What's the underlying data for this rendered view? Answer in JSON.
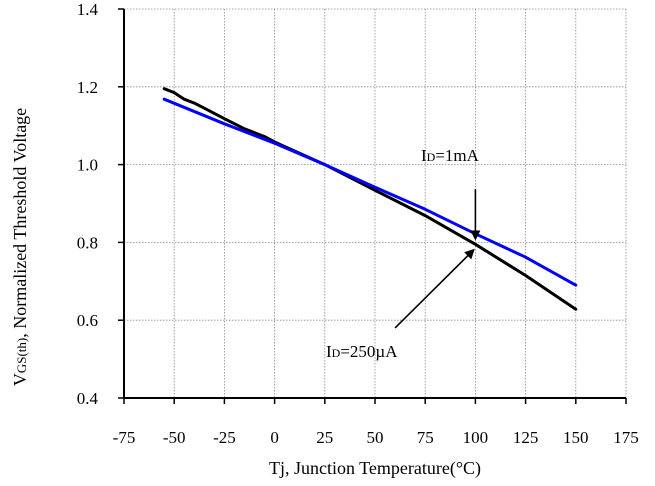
{
  "chart_data": {
    "type": "line",
    "xlabel": "Tj, Junction Temperature(°C)",
    "ylabel": {
      "prefix": "V",
      "subscript": "GS(th)",
      "suffix": ", Normalized Threshold Voltage"
    },
    "xlim": [
      -75,
      175
    ],
    "ylim": [
      0.4,
      1.4
    ],
    "x_ticks": [
      -75,
      -50,
      -25,
      0,
      25,
      50,
      75,
      100,
      125,
      150,
      175
    ],
    "x_tick_labels": [
      "-75",
      "-50",
      "-25",
      "0",
      "25",
      "50",
      "75",
      "100",
      "125",
      "150",
      "175"
    ],
    "y_ticks": [
      0.4,
      0.6,
      0.8,
      1.0,
      1.2,
      1.4
    ],
    "y_tick_labels": [
      "0.4",
      "0.6",
      "0.8",
      "1.0",
      "1.2",
      "1.4"
    ],
    "grid": true,
    "series": [
      {
        "color": "#000000",
        "x": [
          -55,
          -50,
          -45,
          -40,
          -35,
          -25,
          -15,
          -5,
          0,
          25,
          50,
          75,
          100,
          125,
          150
        ],
        "y": [
          1.195,
          1.185,
          1.168,
          1.158,
          1.145,
          1.118,
          1.092,
          1.072,
          1.058,
          1.0,
          0.934,
          0.869,
          0.795,
          0.715,
          0.628
        ]
      },
      {
        "color": "#0000ff",
        "x": [
          -55,
          -25,
          0,
          25,
          50,
          75,
          100,
          125,
          150
        ],
        "y": [
          1.168,
          1.105,
          1.055,
          1.0,
          0.942,
          0.885,
          0.822,
          0.762,
          0.69
        ]
      }
    ],
    "annotations": [
      {
        "name": "annotation-1ma",
        "main": "I",
        "sub": "D",
        "rest": "=1mA",
        "arrow_from": [
          100,
          0.937
        ],
        "arrow_to": [
          100,
          0.81
        ]
      },
      {
        "name": "annotation-250ua",
        "main": "I",
        "sub": "D",
        "rest": "=250µA",
        "arrow_from": [
          60,
          0.58
        ],
        "arrow_to": [
          99,
          0.78
        ]
      }
    ]
  }
}
